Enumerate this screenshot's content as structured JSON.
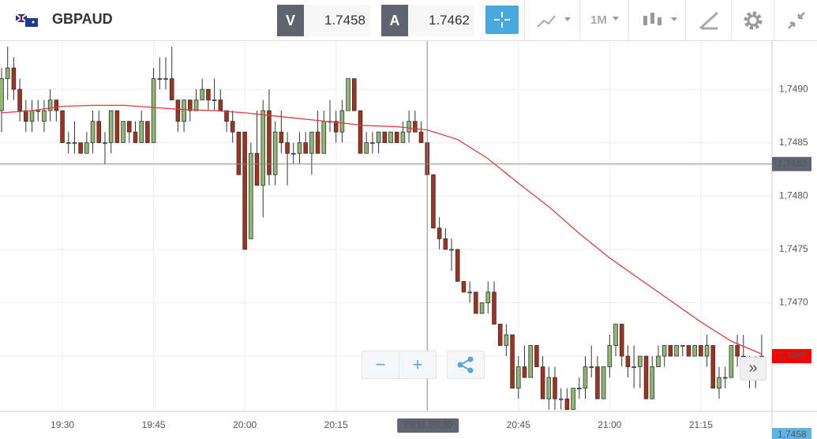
{
  "header": {
    "symbol": "GBPAUD",
    "bid_label": "V",
    "bid": "1.7458",
    "ask_label": "A",
    "ask": "1.7462",
    "timeframe": "1M"
  },
  "chart_data": {
    "type": "candlestick",
    "up_color": "#8fb872",
    "down_color": "#a3311e",
    "ma_color": "#e23b3b",
    "xlim": [
      -0.26,
      126.7
    ],
    "ylim": [
      1.74599,
      1.74943
    ],
    "xticks": [
      {
        "value": 10,
        "label": "19:30"
      },
      {
        "value": 25,
        "label": "19:45"
      },
      {
        "value": 40,
        "label": "20:00"
      },
      {
        "value": 55,
        "label": "20:15"
      },
      {
        "value": 85,
        "label": "20:45"
      },
      {
        "value": 100,
        "label": "21:00"
      },
      {
        "value": 115,
        "label": "21:15"
      }
    ],
    "yticks": [
      {
        "value": 1.749,
        "label": "1,7490"
      },
      {
        "value": 1.7485,
        "label": "1,7485"
      },
      {
        "value": 1.748,
        "label": "1,7480"
      },
      {
        "value": 1.7475,
        "label": "1,7475"
      },
      {
        "value": 1.747,
        "label": "1,7470"
      },
      {
        "value": 1.7465,
        "label": "1,7465"
      }
    ],
    "grid": true,
    "crosshair": {
      "x": {
        "value": 70,
        "label": "29/11 20:30"
      },
      "y": {
        "value": 1.7483,
        "label": "1,7483"
      }
    },
    "price_markers": [
      {
        "value": 1.7465,
        "label": "1,7465",
        "color": "#ff0000"
      },
      {
        "value": 1.7458,
        "label": "1,7458",
        "color": "#5fb4e6"
      }
    ],
    "candles": [
      [
        1.7488,
        1.7492,
        1.7486,
        1.7491
      ],
      [
        1.7491,
        1.7494,
        1.7489,
        1.7492
      ],
      [
        1.7492,
        1.7493,
        1.7489,
        1.749
      ],
      [
        1.749,
        1.7491,
        1.7487,
        1.7488
      ],
      [
        1.7488,
        1.7489,
        1.7486,
        1.7487
      ],
      [
        1.7487,
        1.7489,
        1.7486,
        1.7488
      ],
      [
        1.7488,
        1.7489,
        1.7487,
        1.7488
      ],
      [
        1.7487,
        1.7489,
        1.7486,
        1.7488
      ],
      [
        1.7488,
        1.749,
        1.7487,
        1.7489
      ],
      [
        1.7489,
        1.7489,
        1.7487,
        1.7488
      ],
      [
        1.7488,
        1.7488,
        1.7485,
        1.7485
      ],
      [
        1.7485,
        1.7486,
        1.7484,
        1.7485
      ],
      [
        1.7485,
        1.7487,
        1.7484,
        1.7485
      ],
      [
        1.7485,
        1.7485,
        1.7484,
        1.7484
      ],
      [
        1.7484,
        1.7486,
        1.7484,
        1.7485
      ],
      [
        1.7485,
        1.7488,
        1.7484,
        1.7487
      ],
      [
        1.7487,
        1.7488,
        1.7485,
        1.7485
      ],
      [
        1.7485,
        1.7486,
        1.7483,
        1.7485
      ],
      [
        1.7485,
        1.7488,
        1.7484,
        1.7488
      ],
      [
        1.7488,
        1.7488,
        1.7485,
        1.7485
      ],
      [
        1.7485,
        1.7487,
        1.7485,
        1.7487
      ],
      [
        1.7487,
        1.7487,
        1.7485,
        1.7486
      ],
      [
        1.7486,
        1.7487,
        1.7485,
        1.7485
      ],
      [
        1.7485,
        1.7488,
        1.7485,
        1.7487
      ],
      [
        1.7487,
        1.7487,
        1.7485,
        1.7485
      ],
      [
        1.7485,
        1.7492,
        1.7485,
        1.7491
      ],
      [
        1.7491,
        1.7493,
        1.749,
        1.7491
      ],
      [
        1.7491,
        1.7493,
        1.749,
        1.7491
      ],
      [
        1.7491,
        1.7494,
        1.7489,
        1.7489
      ],
      [
        1.7489,
        1.7489,
        1.7486,
        1.7487
      ],
      [
        1.7487,
        1.7489,
        1.7486,
        1.7489
      ],
      [
        1.7489,
        1.7489,
        1.7487,
        1.7488
      ],
      [
        1.7488,
        1.749,
        1.7488,
        1.7489
      ],
      [
        1.7489,
        1.7491,
        1.7489,
        1.749
      ],
      [
        1.749,
        1.749,
        1.7488,
        1.7489
      ],
      [
        1.7489,
        1.7491,
        1.7488,
        1.7489
      ],
      [
        1.7489,
        1.749,
        1.7488,
        1.7488
      ],
      [
        1.7488,
        1.7488,
        1.7486,
        1.7487
      ],
      [
        1.7487,
        1.7488,
        1.7485,
        1.7486
      ],
      [
        1.7486,
        1.7486,
        1.7482,
        1.7482
      ],
      [
        1.7486,
        1.7486,
        1.7475,
        1.7475
      ],
      [
        1.7476,
        1.7485,
        1.7476,
        1.7484
      ],
      [
        1.7484,
        1.7488,
        1.7481,
        1.7481
      ],
      [
        1.7481,
        1.7489,
        1.7478,
        1.7488
      ],
      [
        1.7488,
        1.749,
        1.7481,
        1.7482
      ],
      [
        1.7482,
        1.7487,
        1.7481,
        1.7486
      ],
      [
        1.7486,
        1.7488,
        1.7484,
        1.7485
      ],
      [
        1.7485,
        1.7486,
        1.7481,
        1.7484
      ],
      [
        1.7484,
        1.7485,
        1.7483,
        1.7484
      ],
      [
        1.7484,
        1.7486,
        1.7483,
        1.7485
      ],
      [
        1.7485,
        1.7486,
        1.7484,
        1.7484
      ],
      [
        1.7484,
        1.7486,
        1.7482,
        1.7486
      ],
      [
        1.7486,
        1.7488,
        1.7484,
        1.7484
      ],
      [
        1.7484,
        1.7488,
        1.7484,
        1.7487
      ],
      [
        1.7487,
        1.7489,
        1.7486,
        1.7487
      ],
      [
        1.7487,
        1.7488,
        1.7485,
        1.7486
      ],
      [
        1.7486,
        1.7489,
        1.7485,
        1.7488
      ],
      [
        1.7488,
        1.7491,
        1.7488,
        1.7491
      ],
      [
        1.7491,
        1.7491,
        1.7488,
        1.7488
      ],
      [
        1.7488,
        1.7488,
        1.7484,
        1.7484
      ],
      [
        1.7484,
        1.7486,
        1.7484,
        1.7485
      ],
      [
        1.7485,
        1.7486,
        1.7484,
        1.7485
      ],
      [
        1.7485,
        1.7486,
        1.7484,
        1.7486
      ],
      [
        1.7486,
        1.7486,
        1.7485,
        1.7485
      ],
      [
        1.7485,
        1.7486,
        1.7485,
        1.7486
      ],
      [
        1.7486,
        1.7486,
        1.7485,
        1.7485
      ],
      [
        1.7485,
        1.7487,
        1.7485,
        1.7486
      ],
      [
        1.7486,
        1.7488,
        1.7485,
        1.7487
      ],
      [
        1.7487,
        1.7488,
        1.7486,
        1.7486
      ],
      [
        1.7486,
        1.7487,
        1.7485,
        1.7485
      ],
      [
        1.7485,
        1.7485,
        1.7482,
        1.7482
      ],
      [
        1.7482,
        1.7482,
        1.7477,
        1.7477
      ],
      [
        1.7477,
        1.7478,
        1.7475,
        1.7476
      ],
      [
        1.7476,
        1.7477,
        1.7475,
        1.7475
      ],
      [
        1.7475,
        1.7476,
        1.7473,
        1.7475
      ],
      [
        1.7475,
        1.7475,
        1.7472,
        1.7472
      ],
      [
        1.7472,
        1.7472,
        1.7471,
        1.7471
      ],
      [
        1.7471,
        1.7472,
        1.747,
        1.7471
      ],
      [
        1.7471,
        1.7471,
        1.7469,
        1.7469
      ],
      [
        1.7469,
        1.747,
        1.7469,
        1.747
      ],
      [
        1.747,
        1.7472,
        1.7469,
        1.7471
      ],
      [
        1.7471,
        1.7472,
        1.7468,
        1.7468
      ],
      [
        1.7468,
        1.7468,
        1.7466,
        1.7466
      ],
      [
        1.7466,
        1.7468,
        1.7465,
        1.7467
      ],
      [
        1.7467,
        1.7467,
        1.7462,
        1.7462
      ],
      [
        1.7462,
        1.7465,
        1.7461,
        1.7464
      ],
      [
        1.7464,
        1.7466,
        1.7463,
        1.7463
      ],
      [
        1.7463,
        1.7466,
        1.7463,
        1.7466
      ],
      [
        1.7466,
        1.7466,
        1.7464,
        1.7464
      ],
      [
        1.7464,
        1.7465,
        1.7461,
        1.7461
      ],
      [
        1.7461,
        1.7464,
        1.746,
        1.7463
      ],
      [
        1.7463,
        1.7464,
        1.746,
        1.7461
      ],
      [
        1.7461,
        1.7462,
        1.746,
        1.7461
      ],
      [
        1.7461,
        1.7462,
        1.746,
        1.746
      ],
      [
        1.746,
        1.7462,
        1.746,
        1.7462
      ],
      [
        1.7462,
        1.7463,
        1.7461,
        1.7462
      ],
      [
        1.7462,
        1.7465,
        1.7461,
        1.7464
      ],
      [
        1.7464,
        1.7466,
        1.7463,
        1.7464
      ],
      [
        1.7464,
        1.7465,
        1.7461,
        1.7461
      ],
      [
        1.7461,
        1.7464,
        1.7461,
        1.7464
      ],
      [
        1.7464,
        1.7467,
        1.7463,
        1.7466
      ],
      [
        1.7466,
        1.7468,
        1.7465,
        1.7468
      ],
      [
        1.7468,
        1.7468,
        1.7464,
        1.7465
      ],
      [
        1.7465,
        1.7466,
        1.7463,
        1.7464
      ],
      [
        1.7464,
        1.7466,
        1.7462,
        1.7464
      ],
      [
        1.7464,
        1.7465,
        1.7462,
        1.7465
      ],
      [
        1.7465,
        1.7465,
        1.7461,
        1.7461
      ],
      [
        1.7461,
        1.7465,
        1.7461,
        1.7464
      ],
      [
        1.7464,
        1.7466,
        1.7464,
        1.7465
      ],
      [
        1.7465,
        1.7466,
        1.7464,
        1.7466
      ],
      [
        1.7466,
        1.7466,
        1.7465,
        1.7465
      ],
      [
        1.7465,
        1.7466,
        1.7465,
        1.7466
      ],
      [
        1.7466,
        1.7466,
        1.7465,
        1.7466
      ],
      [
        1.7466,
        1.7466,
        1.7465,
        1.7465
      ],
      [
        1.7465,
        1.7466,
        1.7465,
        1.7466
      ],
      [
        1.7466,
        1.7466,
        1.7465,
        1.7465
      ],
      [
        1.7465,
        1.7467,
        1.7464,
        1.7466
      ],
      [
        1.7466,
        1.7466,
        1.7462,
        1.7462
      ],
      [
        1.7462,
        1.7464,
        1.7461,
        1.7463
      ],
      [
        1.7463,
        1.7464,
        1.7462,
        1.7463
      ],
      [
        1.7463,
        1.7466,
        1.7463,
        1.7466
      ],
      [
        1.7466,
        1.7467,
        1.7464,
        1.7465
      ],
      [
        1.7465,
        1.7467,
        1.7464,
        1.7464
      ],
      [
        1.7464,
        1.7465,
        1.7462,
        1.7463
      ],
      [
        1.7463,
        1.7465,
        1.7462,
        1.7464
      ],
      [
        1.7464,
        1.7467,
        1.7464,
        1.7465
      ]
    ],
    "ma_x": [
      0,
      5,
      10,
      15,
      20,
      25,
      30,
      35,
      40,
      45,
      50,
      55,
      60,
      65,
      70,
      75,
      80,
      85,
      90,
      95,
      100,
      105,
      110,
      115,
      120,
      125
    ],
    "ma_values": [
      1.74878,
      1.7488,
      1.74884,
      1.74885,
      1.74885,
      1.74883,
      1.74881,
      1.7488,
      1.74878,
      1.74875,
      1.74872,
      1.74869,
      1.74866,
      1.74865,
      1.74862,
      1.74853,
      1.74835,
      1.74812,
      1.7479,
      1.74765,
      1.74742,
      1.74722,
      1.74702,
      1.74682,
      1.74664,
      1.74652
    ]
  }
}
